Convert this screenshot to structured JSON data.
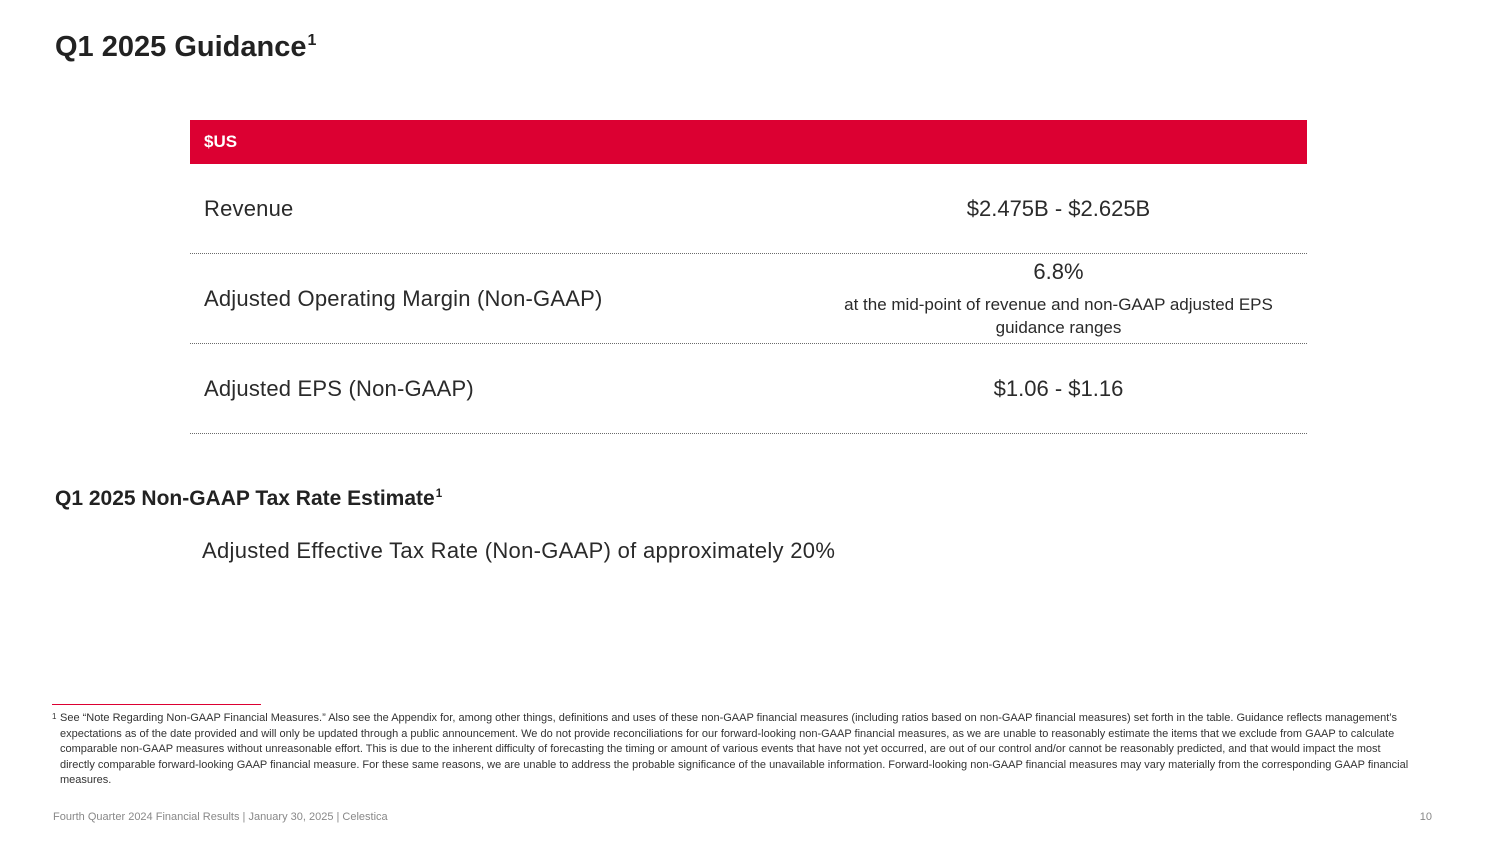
{
  "slide": {
    "title": "Q1 2025 Guidance",
    "title_footnote_mark": "1"
  },
  "guidance_table": {
    "header": "$US",
    "rows": [
      {
        "label": "Revenue",
        "value": "$2.475B - $2.625B"
      },
      {
        "label": "Adjusted Operating Margin (Non-GAAP)",
        "value": "6.8%",
        "note": "at the mid-point of revenue and non-GAAP adjusted EPS guidance ranges"
      },
      {
        "label": "Adjusted EPS (Non-GAAP)",
        "value": "$1.06 - $1.16"
      }
    ]
  },
  "tax_section": {
    "title": "Q1 2025 Non-GAAP Tax Rate Estimate",
    "title_footnote_mark": "1",
    "statement": "Adjusted Effective Tax Rate (Non-GAAP) of approximately 20%"
  },
  "footnote": {
    "mark": "1",
    "text": "See “Note Regarding Non-GAAP Financial Measures.” Also see the Appendix for, among other things, definitions and uses of these non-GAAP financial measures (including ratios based on non-GAAP financial measures) set forth in the table. Guidance reflects management’s expectations as of the date provided and will only be updated through a public announcement. We do not provide reconciliations for our forward-looking non-GAAP financial measures, as we are unable to reasonably estimate the items that we exclude from GAAP to calculate comparable non-GAAP measures without unreasonable effort. This is due to the inherent difficulty of forecasting the timing or amount of various events that have not yet occurred, are out of our control and/or cannot be reasonably predicted, and that would impact the most directly comparable forward-looking GAAP financial measure. For these same reasons, we are unable to address the probable significance of the unavailable information. Forward-looking non-GAAP financial measures may vary materially from the corresponding GAAP financial measures."
  },
  "footer": {
    "text": "Fourth Quarter 2024 Financial Results | January 30, 2025 | Celestica",
    "page_number": "10"
  },
  "colors": {
    "accent": "#dc0032"
  }
}
